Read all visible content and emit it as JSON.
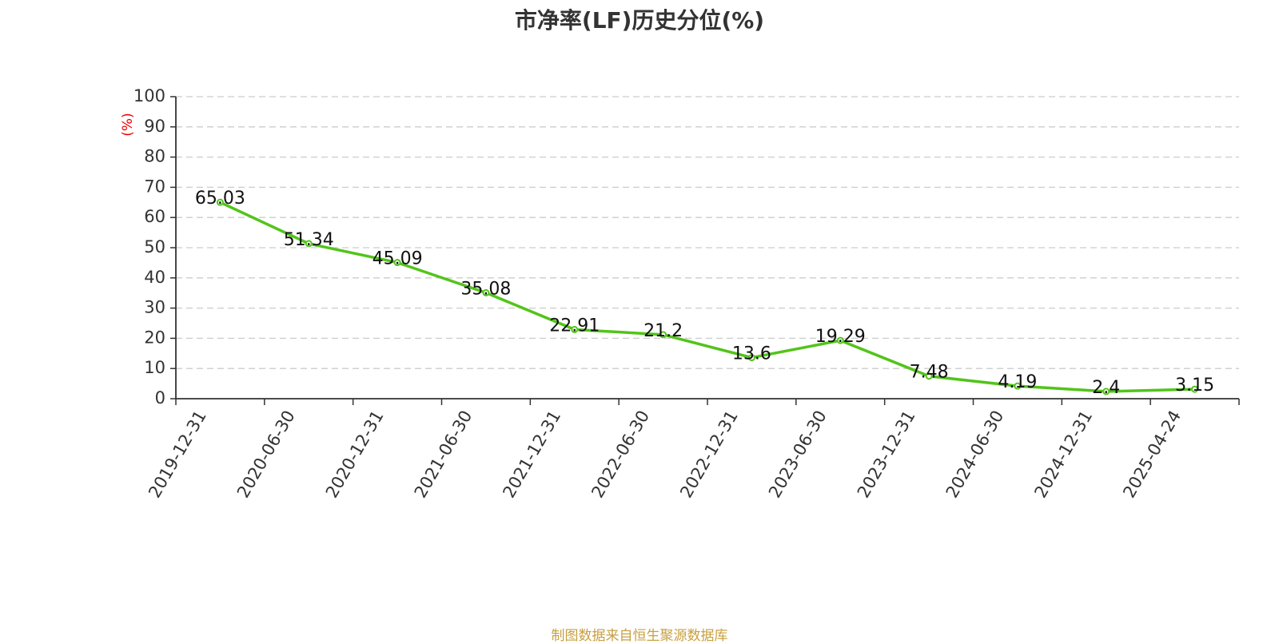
{
  "chart_data": {
    "type": "line",
    "title": "市净率(LF)历史分位(%)",
    "ylabel": "(%)",
    "xlabel": "",
    "ylim": [
      0,
      100
    ],
    "yticks": [
      0,
      10,
      20,
      30,
      40,
      50,
      60,
      70,
      80,
      90,
      100
    ],
    "grid": true,
    "categories": [
      "2019-12-31",
      "2020-06-30",
      "2020-12-31",
      "2021-06-30",
      "2021-12-31",
      "2022-06-30",
      "2022-12-31",
      "2023-06-30",
      "2023-12-31",
      "2024-06-30",
      "2024-12-31",
      "2025-04-24"
    ],
    "series": [
      {
        "values": [
          65.03,
          51.34,
          45.09,
          35.08,
          22.91,
          21.2,
          13.6,
          19.29,
          7.48,
          4.19,
          2.4,
          3.15
        ],
        "labels": [
          "65.03",
          "51.34",
          "45.09",
          "35.08",
          "22.91",
          "21.2",
          "13.6",
          "19.29",
          "7.48",
          "4.19",
          "2.4",
          "3.15"
        ],
        "color": "#52c41a"
      }
    ],
    "source": "制图数据来自恒生聚源数据库"
  }
}
